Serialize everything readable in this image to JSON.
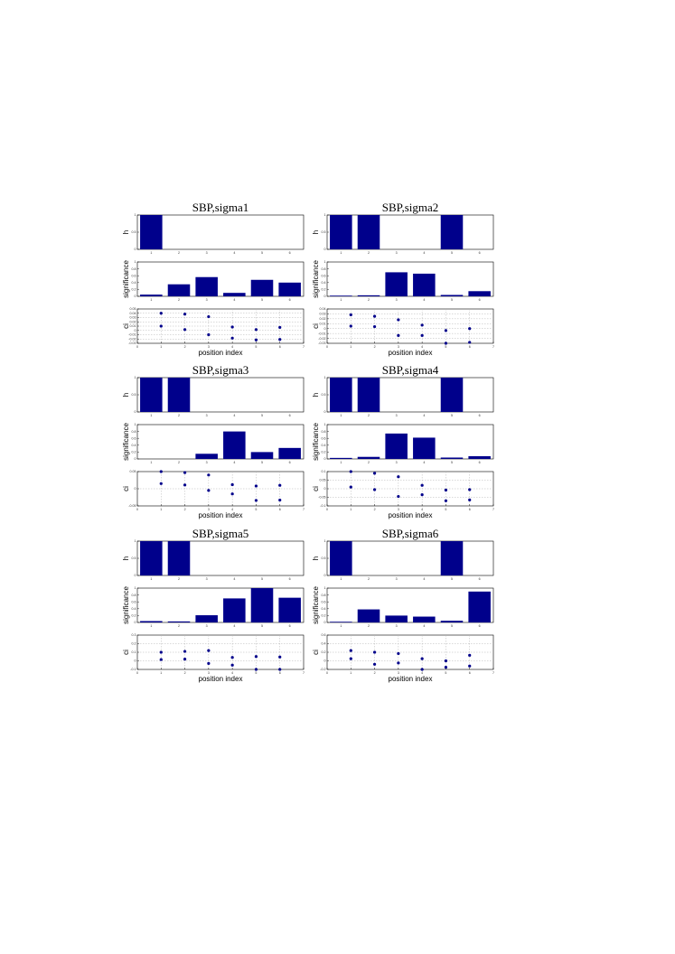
{
  "color": "#00008b",
  "chart_data": [
    {
      "title": "SBP,sigma1",
      "h": {
        "type": "bar",
        "ylabel": "h",
        "categories": [
          1,
          2,
          3,
          4,
          5,
          6
        ],
        "values": [
          1,
          0,
          0,
          0,
          0,
          0
        ],
        "ylim": [
          0,
          1
        ],
        "yticks": [
          "0",
          "0.5",
          "1"
        ]
      },
      "significance": {
        "type": "bar",
        "ylabel": "significance",
        "categories": [
          1,
          2,
          3,
          4,
          5,
          6
        ],
        "values": [
          0.05,
          0.35,
          0.56,
          0.1,
          0.48,
          0.4
        ],
        "ylim": [
          0,
          1
        ],
        "yticks": [
          "0",
          "0.2",
          "0.4",
          "0.6",
          "0.8",
          "1"
        ]
      },
      "ci": {
        "type": "scatter",
        "ylabel": "ci",
        "xlabel": "position index",
        "x": [
          1,
          2,
          3,
          4,
          5,
          6
        ],
        "upper": [
          0.04,
          0.038,
          0.032,
          0.008,
          0.002,
          0.007
        ],
        "lower": [
          0.01,
          0.002,
          -0.01,
          -0.018,
          -0.022,
          -0.021
        ],
        "ylim": [
          -0.03,
          0.05
        ],
        "yticks": [
          "-0.03",
          "-0.02",
          "-0.01",
          "0",
          "0.01",
          "0.02",
          "0.03",
          "0.04",
          "0.05"
        ],
        "xlim": [
          0,
          7
        ],
        "xticks": [
          "0",
          "1",
          "2",
          "3",
          "4",
          "5",
          "6",
          "7"
        ],
        "grid": true
      }
    },
    {
      "title": "SBP,sigma2",
      "h": {
        "type": "bar",
        "ylabel": "h",
        "categories": [
          1,
          2,
          3,
          4,
          5,
          6
        ],
        "values": [
          1,
          1,
          0,
          0,
          1,
          0
        ],
        "ylim": [
          0,
          1
        ],
        "yticks": [
          "0",
          "0.5",
          "1"
        ]
      },
      "significance": {
        "type": "bar",
        "ylabel": "significance",
        "categories": [
          1,
          2,
          3,
          4,
          5,
          6
        ],
        "values": [
          0.02,
          0.03,
          0.7,
          0.66,
          0.04,
          0.15
        ],
        "ylim": [
          0,
          1
        ],
        "yticks": [
          "0",
          "0.2",
          "0.4",
          "0.6",
          "0.8",
          "1"
        ]
      },
      "ci": {
        "type": "scatter",
        "ylabel": "ci",
        "xlabel": "position index",
        "x": [
          1,
          2,
          3,
          4,
          5,
          6
        ],
        "upper": [
          0.028,
          0.025,
          0.018,
          0.007,
          -0.004,
          0.0
        ],
        "lower": [
          0.005,
          0.004,
          -0.014,
          -0.014,
          -0.03,
          -0.028
        ],
        "ylim": [
          -0.03,
          0.04
        ],
        "yticks": [
          "-0.03",
          "-0.02",
          "-0.01",
          "0",
          "0.01",
          "0.02",
          "0.03",
          "0.04"
        ],
        "xlim": [
          0,
          7
        ],
        "xticks": [
          "0",
          "1",
          "2",
          "3",
          "4",
          "5",
          "6",
          "7"
        ],
        "grid": true
      }
    },
    {
      "title": "SBP,sigma3",
      "h": {
        "type": "bar",
        "ylabel": "h",
        "categories": [
          1,
          2,
          3,
          4,
          5,
          6
        ],
        "values": [
          1,
          1,
          0,
          0,
          0,
          0
        ],
        "ylim": [
          0,
          1
        ],
        "yticks": [
          "0",
          "0.5",
          "1"
        ]
      },
      "significance": {
        "type": "bar",
        "ylabel": "significance",
        "categories": [
          1,
          2,
          3,
          4,
          5,
          6
        ],
        "values": [
          0,
          0,
          0.15,
          0.8,
          0.2,
          0.32
        ],
        "ylim": [
          0,
          1
        ],
        "yticks": [
          "0",
          "0.2",
          "0.4",
          "0.6",
          "0.8",
          "1"
        ]
      },
      "ci": {
        "type": "scatter",
        "ylabel": "ci",
        "xlabel": "position index",
        "x": [
          1,
          2,
          3,
          4,
          5,
          6
        ],
        "upper": [
          0.05,
          0.047,
          0.04,
          0.012,
          0.008,
          0.01
        ],
        "lower": [
          0.015,
          0.011,
          -0.005,
          -0.015,
          -0.034,
          -0.033
        ],
        "ylim": [
          -0.05,
          0.05
        ],
        "yticks": [
          "-0.05",
          "0",
          "0.05"
        ],
        "xlim": [
          0,
          7
        ],
        "xticks": [
          "0",
          "1",
          "2",
          "3",
          "4",
          "5",
          "6",
          "7"
        ],
        "grid": true
      }
    },
    {
      "title": "SBP,sigma4",
      "h": {
        "type": "bar",
        "ylabel": "h",
        "categories": [
          1,
          2,
          3,
          4,
          5,
          6
        ],
        "values": [
          1,
          1,
          0,
          0,
          1,
          0
        ],
        "ylim": [
          0,
          1
        ],
        "yticks": [
          "0",
          "0.5",
          "1"
        ]
      },
      "significance": {
        "type": "bar",
        "ylabel": "significance",
        "categories": [
          1,
          2,
          3,
          4,
          5,
          6
        ],
        "values": [
          0.03,
          0.06,
          0.74,
          0.62,
          0.04,
          0.08
        ],
        "ylim": [
          0,
          1
        ],
        "yticks": [
          "0",
          "0.2",
          "0.4",
          "0.6",
          "0.8",
          "1"
        ]
      },
      "ci": {
        "type": "scatter",
        "ylabel": "ci",
        "xlabel": "position index",
        "x": [
          1,
          2,
          3,
          4,
          5,
          6
        ],
        "upper": [
          0.1,
          0.09,
          0.07,
          0.02,
          -0.008,
          -0.005
        ],
        "lower": [
          0.01,
          -0.005,
          -0.045,
          -0.035,
          -0.07,
          -0.065
        ],
        "ylim": [
          -0.1,
          0.1
        ],
        "yticks": [
          "-0.1",
          "-0.05",
          "0",
          "0.05",
          "0.1"
        ],
        "xlim": [
          0,
          7
        ],
        "xticks": [
          "0",
          "1",
          "2",
          "3",
          "4",
          "5",
          "6",
          "7"
        ],
        "grid": true
      }
    },
    {
      "title": "SBP,sigma5",
      "h": {
        "type": "bar",
        "ylabel": "h",
        "categories": [
          1,
          2,
          3,
          4,
          5,
          6
        ],
        "values": [
          1,
          1,
          0,
          0,
          0,
          0
        ],
        "ylim": [
          0,
          1
        ],
        "yticks": [
          "0",
          "0.5",
          "1"
        ]
      },
      "significance": {
        "type": "bar",
        "ylabel": "significance",
        "categories": [
          1,
          2,
          3,
          4,
          5,
          6
        ],
        "values": [
          0.04,
          0.03,
          0.21,
          0.7,
          1,
          0.72
        ],
        "ylim": [
          0,
          1
        ],
        "yticks": [
          "0",
          "0.2",
          "0.4",
          "0.6",
          "0.8",
          "1"
        ]
      },
      "ci": {
        "type": "scatter",
        "ylabel": "ci",
        "xlabel": "position index",
        "x": [
          1,
          2,
          3,
          4,
          5,
          6
        ],
        "upper": [
          0.1,
          0.11,
          0.12,
          0.04,
          0.05,
          0.045
        ],
        "lower": [
          0.015,
          0.02,
          -0.03,
          -0.05,
          -0.1,
          -0.1
        ],
        "ylim": [
          -0.1,
          0.3
        ],
        "yticks": [
          "-0.1",
          "0",
          "0.1",
          "0.2",
          "0.3"
        ],
        "xlim": [
          0,
          7
        ],
        "xticks": [
          "0",
          "1",
          "2",
          "3",
          "4",
          "5",
          "6",
          "7"
        ],
        "grid": true
      }
    },
    {
      "title": "SBP,sigma6",
      "h": {
        "type": "bar",
        "ylabel": "h",
        "categories": [
          1,
          2,
          3,
          4,
          5,
          6
        ],
        "values": [
          1,
          0,
          0,
          0,
          1,
          0
        ],
        "ylim": [
          0,
          1
        ],
        "yticks": [
          "0",
          "0.5",
          "1"
        ]
      },
      "significance": {
        "type": "bar",
        "ylabel": "significance",
        "categories": [
          1,
          2,
          3,
          4,
          5,
          6
        ],
        "values": [
          0.02,
          0.38,
          0.2,
          0.17,
          0.05,
          0.9
        ],
        "ylim": [
          0,
          1
        ],
        "yticks": [
          "0",
          "0.2",
          "0.4",
          "0.6",
          "0.8",
          "1"
        ]
      },
      "ci": {
        "type": "scatter",
        "ylabel": "ci",
        "xlabel": "position index",
        "x": [
          1,
          2,
          3,
          4,
          5,
          6
        ],
        "upper": [
          0.24,
          0.2,
          0.17,
          0.05,
          0.0,
          0.13
        ],
        "lower": [
          0.05,
          -0.08,
          -0.05,
          -0.2,
          -0.15,
          -0.12
        ],
        "ylim": [
          -0.2,
          0.6
        ],
        "yticks": [
          "-0.2",
          "0",
          "0.2",
          "0.4",
          "0.6"
        ],
        "xlim": [
          0,
          7
        ],
        "xticks": [
          "0",
          "1",
          "2",
          "3",
          "4",
          "5",
          "6",
          "7"
        ],
        "grid": true
      }
    }
  ]
}
